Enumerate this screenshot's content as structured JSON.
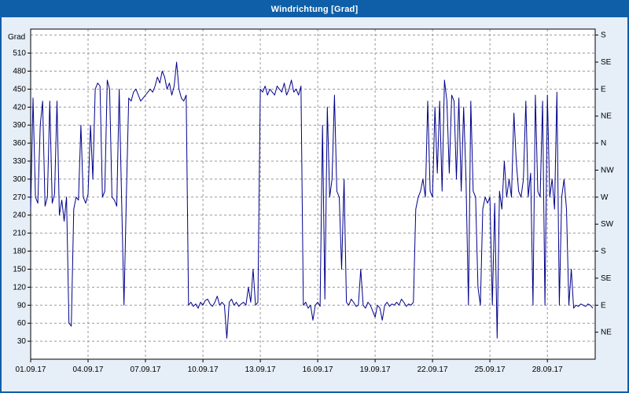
{
  "window": {
    "title": "Windrichtung [Grad]",
    "titlebar_color": "#0f5fa8",
    "background_color": "#e6eef7"
  },
  "chart_data": {
    "type": "line",
    "title": "Windrichtung [Grad]",
    "ylabel_left": "Grad",
    "series_name": "Windrichtung",
    "line_color": "#00008b",
    "grid": true,
    "grid_color": "#999999",
    "x_start_day": 1,
    "x_end_day": 30.5,
    "x_tick_days": [
      1,
      4,
      7,
      10,
      13,
      16,
      19,
      22,
      25,
      28
    ],
    "x_tick_labels": [
      "01.09.17",
      "04.09.17",
      "07.09.17",
      "10.09.17",
      "13.09.17",
      "16.09.17",
      "19.09.17",
      "22.09.17",
      "25.09.17",
      "28.09.17"
    ],
    "ylim": [
      0,
      550
    ],
    "y_ticks_left": [
      30,
      60,
      90,
      120,
      150,
      180,
      210,
      240,
      270,
      300,
      330,
      360,
      390,
      420,
      450,
      480,
      510
    ],
    "y_ticks_right": [
      {
        "value": 45,
        "label": "NE"
      },
      {
        "value": 90,
        "label": "E"
      },
      {
        "value": 135,
        "label": "SE"
      },
      {
        "value": 180,
        "label": "S"
      },
      {
        "value": 225,
        "label": "SW"
      },
      {
        "value": 270,
        "label": "W"
      },
      {
        "value": 315,
        "label": "NW"
      },
      {
        "value": 360,
        "label": "N"
      },
      {
        "value": 405,
        "label": "NE"
      },
      {
        "value": 450,
        "label": "E"
      },
      {
        "value": 495,
        "label": "SE"
      },
      {
        "value": 540,
        "label": "S"
      }
    ],
    "sample_interval_hours": 3,
    "values": [
      250,
      435,
      270,
      260,
      390,
      430,
      255,
      270,
      430,
      260,
      275,
      430,
      240,
      265,
      230,
      270,
      60,
      55,
      250,
      270,
      265,
      390,
      270,
      260,
      275,
      390,
      300,
      450,
      460,
      455,
      270,
      280,
      465,
      450,
      270,
      265,
      255,
      450,
      270,
      90,
      270,
      435,
      430,
      445,
      450,
      440,
      430,
      435,
      440,
      445,
      450,
      445,
      455,
      470,
      460,
      480,
      470,
      450,
      460,
      440,
      455,
      495,
      450,
      435,
      430,
      440,
      90,
      95,
      88,
      92,
      85,
      95,
      90,
      98,
      100,
      92,
      88,
      95,
      105,
      90,
      95,
      90,
      35,
      95,
      100,
      90,
      95,
      88,
      92,
      95,
      90,
      120,
      95,
      150,
      90,
      95,
      450,
      445,
      455,
      440,
      450,
      445,
      440,
      455,
      450,
      445,
      460,
      440,
      450,
      465,
      445,
      450,
      440,
      455,
      90,
      95,
      85,
      90,
      65,
      90,
      95,
      88,
      390,
      100,
      420,
      270,
      300,
      440,
      280,
      270,
      150,
      300,
      95,
      90,
      100,
      95,
      88,
      90,
      150,
      90,
      85,
      95,
      90,
      80,
      70,
      90,
      85,
      65,
      90,
      95,
      88,
      92,
      90,
      95,
      90,
      100,
      95,
      88,
      92,
      90,
      95,
      250,
      270,
      280,
      300,
      270,
      430,
      280,
      270,
      420,
      310,
      430,
      280,
      465,
      430,
      310,
      440,
      430,
      300,
      435,
      280,
      420,
      300,
      90,
      430,
      280,
      270,
      120,
      90,
      250,
      270,
      260,
      270,
      90,
      260,
      35,
      280,
      250,
      330,
      270,
      300,
      270,
      410,
      330,
      280,
      270,
      300,
      430,
      270,
      310,
      90,
      440,
      280,
      270,
      430,
      90,
      440,
      270,
      300,
      250,
      445,
      90,
      270,
      300,
      250,
      90,
      150,
      85,
      90,
      88,
      92,
      90,
      88,
      92,
      90,
      85
    ]
  }
}
